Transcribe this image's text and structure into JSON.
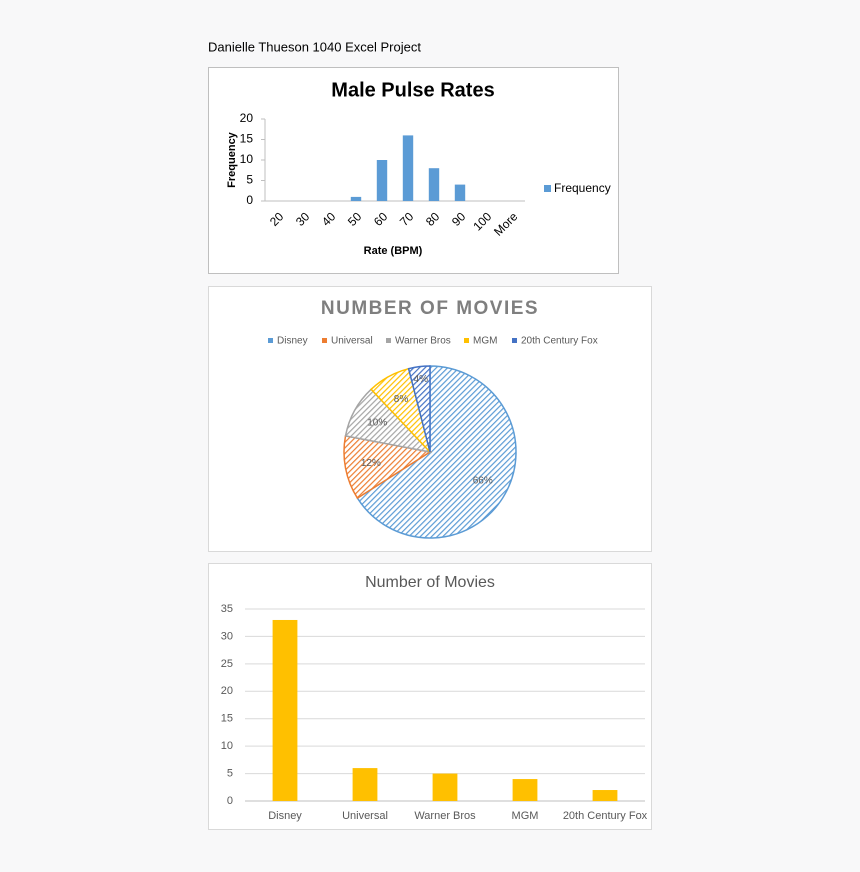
{
  "header": {
    "title": "Danielle Thueson 1040 Excel Project"
  },
  "chart_data": [
    {
      "type": "bar",
      "title": "Male Pulse Rates",
      "x_label": "Rate (BPM)",
      "y_label": "Frequency",
      "categories": [
        "20",
        "30",
        "40",
        "50",
        "60",
        "70",
        "80",
        "90",
        "100",
        "More"
      ],
      "series": [
        {
          "name": "Frequency",
          "color": "#5b9bd5",
          "values": [
            0,
            0,
            0,
            1,
            10,
            16,
            8,
            4,
            0,
            0
          ]
        }
      ],
      "ylim": [
        0,
        20
      ],
      "yticks": [
        0,
        5,
        10,
        15,
        20
      ],
      "grid": false,
      "legend": "right"
    },
    {
      "type": "pie",
      "title": "NUMBER OF MOVIES",
      "categories": [
        "Disney",
        "Universal",
        "Warner Bros",
        "MGM",
        "20th Century Fox"
      ],
      "values": [
        66,
        12,
        10,
        8,
        4
      ],
      "value_labels": [
        "66%",
        "12%",
        "10%",
        "8%",
        "4%"
      ],
      "colors": [
        "#5b9bd5",
        "#ed7d31",
        "#a5a5a5",
        "#ffc000",
        "#4472c4"
      ],
      "legend": "top"
    },
    {
      "type": "bar",
      "title": "Number of Movies",
      "categories": [
        "Disney",
        "Universal",
        "Warner Bros",
        "MGM",
        "20th Century Fox"
      ],
      "series": [
        {
          "name": "Number of Movies",
          "color": "#ffc000",
          "values": [
            33,
            6,
            5,
            4,
            2
          ]
        }
      ],
      "ylim": [
        0,
        35
      ],
      "yticks": [
        0,
        5,
        10,
        15,
        20,
        25,
        30,
        35
      ],
      "grid": true
    }
  ]
}
